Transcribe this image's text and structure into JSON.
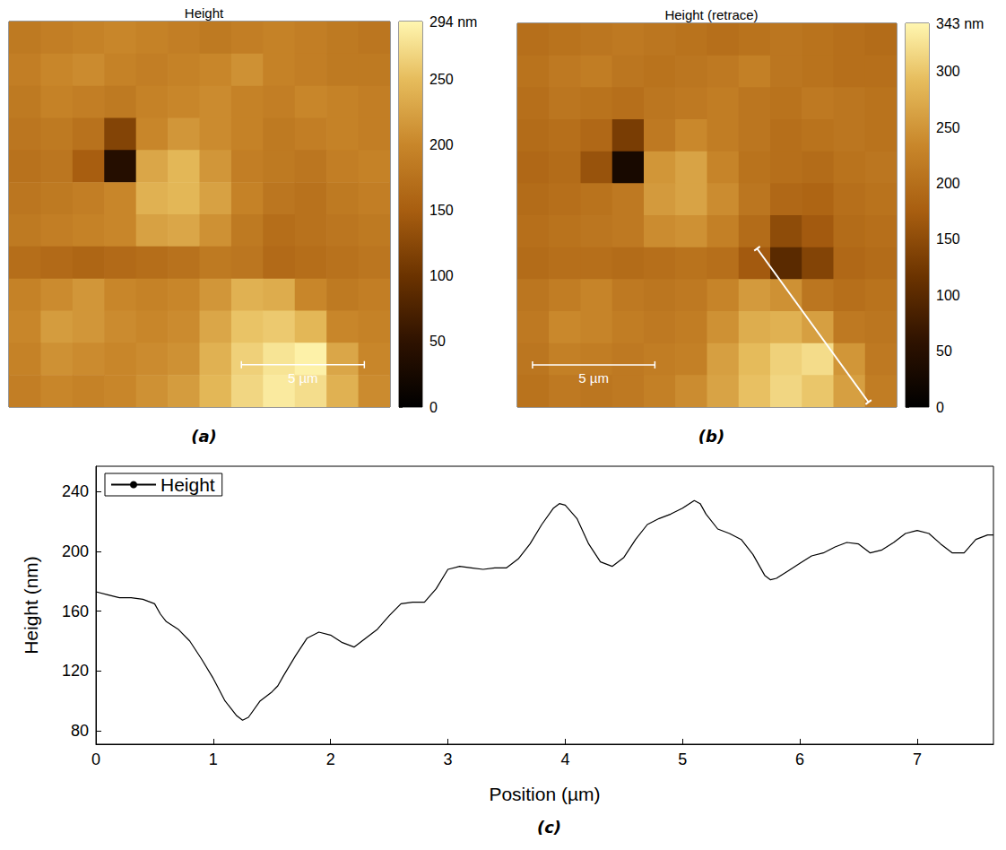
{
  "chart_data": [
    {
      "type": "heatmap",
      "title": "Height",
      "panel_label": "(a)",
      "xlim": [
        0,
        15.5
      ],
      "ylim": [
        0,
        15.5
      ],
      "tick_labels": false,
      "cells": [
        [
          185,
          190,
          195,
          200,
          195,
          190,
          185,
          190,
          195,
          190,
          185,
          180
        ],
        [
          190,
          200,
          205,
          195,
          190,
          195,
          200,
          210,
          195,
          190,
          185,
          185
        ],
        [
          185,
          195,
          190,
          185,
          195,
          200,
          205,
          195,
          190,
          200,
          195,
          190
        ],
        [
          180,
          185,
          175,
          120,
          200,
          215,
          205,
          195,
          185,
          190,
          195,
          190
        ],
        [
          175,
          180,
          150,
          40,
          230,
          245,
          215,
          190,
          185,
          180,
          190,
          195
        ],
        [
          180,
          185,
          190,
          200,
          240,
          245,
          225,
          195,
          180,
          175,
          185,
          190
        ],
        [
          185,
          190,
          195,
          200,
          225,
          230,
          210,
          185,
          170,
          175,
          180,
          185
        ],
        [
          170,
          165,
          160,
          165,
          170,
          175,
          185,
          180,
          165,
          170,
          175,
          180
        ],
        [
          195,
          205,
          215,
          200,
          195,
          200,
          215,
          240,
          235,
          200,
          185,
          190
        ],
        [
          200,
          220,
          215,
          205,
          200,
          205,
          230,
          255,
          260,
          245,
          200,
          195
        ],
        [
          195,
          210,
          205,
          200,
          205,
          210,
          240,
          265,
          280,
          290,
          230,
          200
        ],
        [
          190,
          200,
          195,
          200,
          210,
          220,
          245,
          270,
          285,
          275,
          240,
          205
        ]
      ],
      "colorbar": {
        "range": [
          0,
          294
        ],
        "ticks": [
          {
            "value": 294,
            "label": "294 nm"
          },
          250,
          200,
          150,
          100,
          50,
          0
        ]
      },
      "scale_bar": {
        "length": 5,
        "label": "5 µm"
      }
    },
    {
      "type": "heatmap",
      "title": "Height (retrace)",
      "panel_label": "(b)",
      "xlim": [
        0,
        15.5
      ],
      "ylim": [
        0,
        15.5
      ],
      "tick_labels": false,
      "cells": [
        [
          200,
          205,
          210,
          215,
          210,
          205,
          200,
          205,
          210,
          205,
          200,
          195
        ],
        [
          205,
          215,
          220,
          210,
          205,
          210,
          215,
          225,
          210,
          205,
          200,
          200
        ],
        [
          200,
          210,
          205,
          200,
          210,
          215,
          220,
          210,
          205,
          215,
          210,
          205
        ],
        [
          195,
          200,
          190,
          130,
          215,
          235,
          220,
          210,
          200,
          205,
          210,
          205
        ],
        [
          190,
          195,
          160,
          30,
          250,
          265,
          230,
          205,
          200,
          195,
          205,
          210
        ],
        [
          195,
          200,
          205,
          215,
          255,
          265,
          240,
          210,
          190,
          185,
          200,
          205
        ],
        [
          200,
          205,
          210,
          215,
          240,
          245,
          225,
          195,
          150,
          170,
          195,
          200
        ],
        [
          195,
          200,
          200,
          195,
          200,
          205,
          200,
          170,
          100,
          140,
          190,
          195
        ],
        [
          210,
          220,
          230,
          215,
          210,
          215,
          230,
          255,
          245,
          210,
          200,
          205
        ],
        [
          215,
          235,
          230,
          220,
          215,
          220,
          245,
          275,
          280,
          260,
          215,
          210
        ],
        [
          210,
          225,
          220,
          215,
          220,
          225,
          260,
          290,
          310,
          320,
          250,
          215
        ],
        [
          205,
          215,
          210,
          215,
          225,
          240,
          265,
          295,
          315,
          300,
          260,
          220
        ]
      ],
      "colorbar": {
        "range": [
          0,
          343
        ],
        "ticks": [
          {
            "value": 343,
            "label": "343 nm"
          },
          300,
          250,
          200,
          150,
          100,
          50,
          0
        ]
      },
      "scale_bar": {
        "length": 5,
        "label": "5 µm"
      },
      "profile_line": {
        "start": [
          9.8,
          9.1
        ],
        "end": [
          14.35,
          15.3
        ]
      }
    },
    {
      "type": "line",
      "panel_label": "(c)",
      "xlabel": "Position (µm)",
      "ylabel": "Height (nm)",
      "xlim": [
        0,
        7.65
      ],
      "ylim": [
        71,
        257
      ],
      "xticks": [
        0,
        1,
        2,
        3,
        4,
        5,
        6,
        7
      ],
      "yticks": [
        80,
        120,
        160,
        200,
        240
      ],
      "grid": false,
      "legend": "upper left",
      "x": [
        0,
        0.1,
        0.2,
        0.3,
        0.4,
        0.5,
        0.55,
        0.6,
        0.7,
        0.8,
        0.9,
        1.0,
        1.1,
        1.2,
        1.25,
        1.3,
        1.4,
        1.5,
        1.55,
        1.6,
        1.7,
        1.8,
        1.9,
        2.0,
        2.1,
        2.2,
        2.3,
        2.4,
        2.5,
        2.6,
        2.7,
        2.8,
        2.9,
        3.0,
        3.1,
        3.2,
        3.3,
        3.4,
        3.5,
        3.6,
        3.7,
        3.8,
        3.9,
        3.95,
        4.0,
        4.1,
        4.2,
        4.3,
        4.4,
        4.5,
        4.6,
        4.7,
        4.8,
        4.9,
        5.0,
        5.1,
        5.15,
        5.2,
        5.3,
        5.4,
        5.5,
        5.6,
        5.7,
        5.75,
        5.8,
        5.9,
        6.0,
        6.1,
        6.2,
        6.3,
        6.4,
        6.5,
        6.6,
        6.7,
        6.8,
        6.9,
        7.0,
        7.1,
        7.2,
        7.3,
        7.4,
        7.5,
        7.6,
        7.65
      ],
      "series": [
        {
          "name": "Height",
          "color": "#000000",
          "line_style": "solid",
          "values": [
            173,
            171,
            169,
            169,
            168,
            165,
            158,
            153,
            148,
            140,
            128,
            115,
            100,
            90,
            87,
            89,
            100,
            106,
            110,
            117,
            130,
            142,
            146,
            144,
            139,
            136,
            142,
            148,
            157,
            165,
            166,
            166,
            175,
            188,
            190,
            189,
            188,
            189,
            189,
            195,
            205,
            218,
            229,
            232,
            231,
            222,
            205,
            193,
            190,
            196,
            208,
            218,
            222,
            225,
            229,
            234,
            232,
            225,
            215,
            212,
            208,
            198,
            184,
            181,
            182,
            187,
            192,
            197,
            199,
            203,
            206,
            205,
            199,
            201,
            206,
            212,
            214,
            212,
            205,
            199,
            199,
            208,
            211,
            211
          ]
        }
      ]
    }
  ]
}
